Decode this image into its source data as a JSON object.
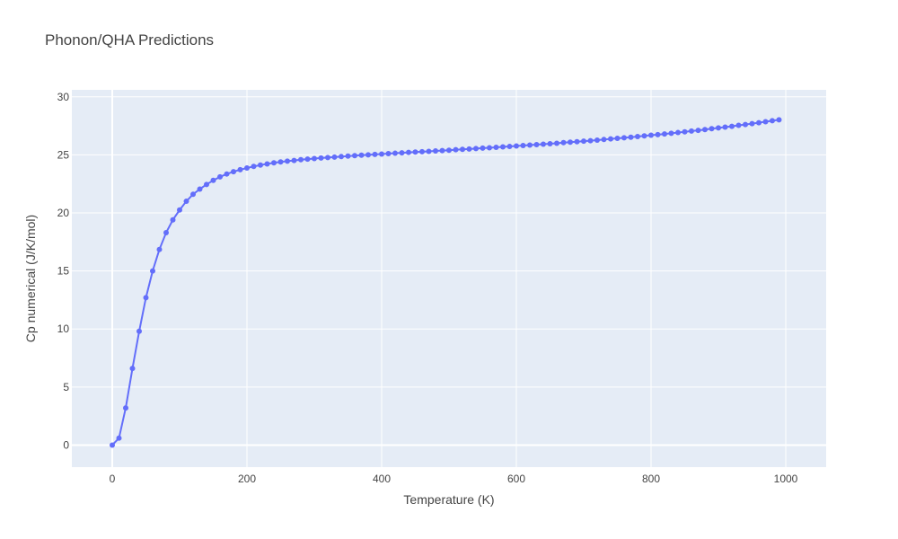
{
  "chart_data": {
    "type": "line",
    "title": "Phonon/QHA Predictions",
    "xlabel": "Temperature (K)",
    "ylabel": "Cp numerical (J/K/mol)",
    "xlim": [
      -60,
      1060
    ],
    "ylim": [
      -1.9,
      30.6
    ],
    "xticks": [
      0,
      200,
      400,
      600,
      800,
      1000
    ],
    "xtick_labels": [
      "0",
      "200",
      "400",
      "600",
      "800",
      "1000"
    ],
    "yticks": [
      0,
      5,
      10,
      15,
      20,
      25,
      30
    ],
    "ytick_labels": [
      "0",
      "5",
      "10",
      "15",
      "20",
      "25",
      "30"
    ],
    "grid": true,
    "plot_background": "#e5ecf6",
    "series": [
      {
        "color": "#636efa",
        "mode": "lines+markers",
        "x": [
          0,
          10,
          20,
          30,
          40,
          50,
          60,
          70,
          80,
          90,
          100,
          110,
          120,
          130,
          140,
          150,
          160,
          170,
          180,
          190,
          200,
          210,
          220,
          230,
          240,
          250,
          260,
          270,
          280,
          290,
          300,
          310,
          320,
          330,
          340,
          350,
          360,
          370,
          380,
          390,
          400,
          410,
          420,
          430,
          440,
          450,
          460,
          470,
          480,
          490,
          500,
          510,
          520,
          530,
          540,
          550,
          560,
          570,
          580,
          590,
          600,
          610,
          620,
          630,
          640,
          650,
          660,
          670,
          680,
          690,
          700,
          710,
          720,
          730,
          740,
          750,
          760,
          770,
          780,
          790,
          800,
          810,
          820,
          830,
          840,
          850,
          860,
          870,
          880,
          890,
          900,
          910,
          920,
          930,
          940,
          950,
          960,
          970,
          980,
          990
        ],
        "y": [
          0.0,
          0.6,
          3.2,
          6.6,
          9.8,
          12.7,
          15.0,
          16.85,
          18.3,
          19.4,
          20.25,
          21.0,
          21.6,
          22.05,
          22.45,
          22.8,
          23.1,
          23.35,
          23.55,
          23.72,
          23.87,
          24.0,
          24.12,
          24.22,
          24.31,
          24.39,
          24.46,
          24.52,
          24.58,
          24.63,
          24.68,
          24.73,
          24.77,
          24.81,
          24.85,
          24.89,
          24.93,
          24.97,
          25.0,
          25.04,
          25.07,
          25.11,
          25.14,
          25.17,
          25.21,
          25.24,
          25.27,
          25.3,
          25.34,
          25.37,
          25.4,
          25.44,
          25.47,
          25.5,
          25.54,
          25.58,
          25.61,
          25.65,
          25.69,
          25.72,
          25.76,
          25.8,
          25.84,
          25.88,
          25.92,
          25.96,
          26.0,
          26.05,
          26.09,
          26.13,
          26.18,
          26.22,
          26.27,
          26.32,
          26.37,
          26.42,
          26.47,
          26.52,
          26.58,
          26.63,
          26.69,
          26.74,
          26.8,
          26.86,
          26.92,
          26.98,
          27.05,
          27.11,
          27.18,
          27.25,
          27.32,
          27.39,
          27.46,
          27.54,
          27.61,
          27.69,
          27.77,
          27.85,
          27.94,
          28.02
        ]
      }
    ]
  }
}
